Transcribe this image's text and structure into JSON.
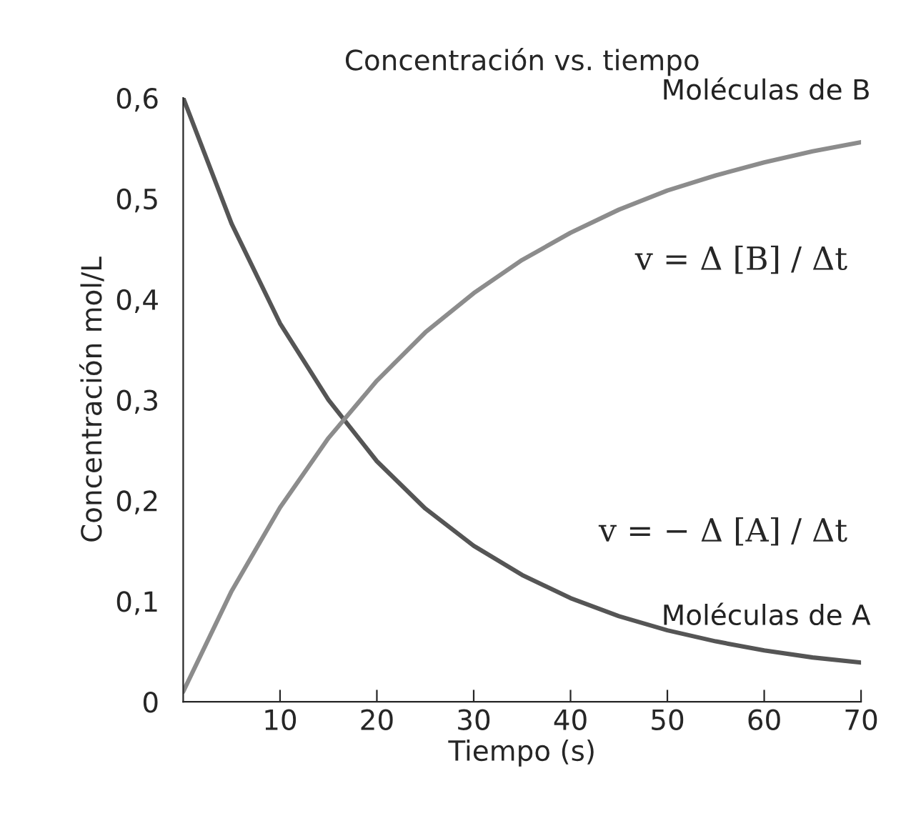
{
  "chart_data": {
    "type": "line",
    "title": "Concentración vs. tiempo",
    "xlabel": "Tiempo (s)",
    "ylabel": "Concentración mol/L",
    "x": [
      0,
      5,
      10,
      15,
      20,
      25,
      30,
      35,
      40,
      45,
      50,
      55,
      60,
      65,
      70
    ],
    "series": [
      {
        "name": "Moléculas de A",
        "color": "#555555",
        "values": [
          0.6,
          0.475,
          0.376,
          0.3,
          0.239,
          0.192,
          0.155,
          0.126,
          0.103,
          0.085,
          0.071,
          0.06,
          0.051,
          0.044,
          0.039
        ]
      },
      {
        "name": "Moléculas de B",
        "color": "#8c8c8c",
        "values": [
          0.01,
          0.11,
          0.193,
          0.262,
          0.319,
          0.367,
          0.406,
          0.439,
          0.466,
          0.489,
          0.508,
          0.523,
          0.536,
          0.547,
          0.556
        ]
      }
    ],
    "annotations": [
      "v = Δ [B] / Δt",
      "v = − Δ [A] / Δt"
    ],
    "xlim": [
      0,
      70
    ],
    "xticks": [
      10,
      20,
      30,
      40,
      50,
      60,
      70
    ],
    "ylim": [
      0,
      0.6
    ],
    "yticks": [
      {
        "value": 0,
        "label": "0"
      },
      {
        "value": 0.1,
        "label": "0,1"
      },
      {
        "value": 0.2,
        "label": "0,2"
      },
      {
        "value": 0.3,
        "label": "0,3"
      },
      {
        "value": 0.4,
        "label": "0,4"
      },
      {
        "value": 0.5,
        "label": "0,5"
      },
      {
        "value": 0.6,
        "label": "0,6"
      }
    ],
    "grid": false,
    "legend": false,
    "marker": "none",
    "line_style": "solid"
  }
}
